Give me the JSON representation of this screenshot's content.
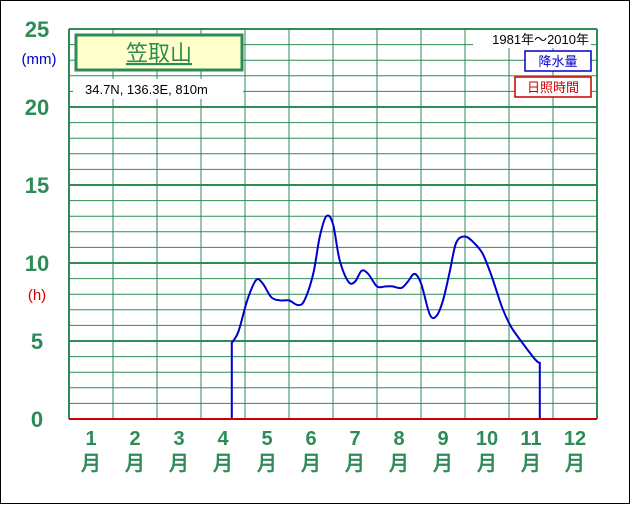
{
  "colors": {
    "grid": "#2e8b57",
    "axis_text": "#2e8b57",
    "precip": "#0000cc",
    "sunshine": "#cc0000",
    "station_fill": "#ffffcc",
    "station_border": "#2e8b57"
  },
  "header": {
    "station_name": "笠取山",
    "location": "34.7N,  136.3E,  810m",
    "period": "1981年〜2010年"
  },
  "legend": {
    "precip_label": "降水量",
    "sunshine_label": "日照時間"
  },
  "chart_data": {
    "type": "line",
    "title": "",
    "y_unit_precip": "(mm)",
    "y_unit_sunshine": "(h)",
    "ylim": [
      0,
      25
    ],
    "yticks": [
      "0",
      "5",
      "10",
      "15",
      "20",
      "25"
    ],
    "ytick_values": [
      0,
      5,
      10,
      15,
      20,
      25
    ],
    "xlim": [
      0.5,
      12.5
    ],
    "month_numbers": [
      "1",
      "2",
      "3",
      "4",
      "5",
      "6",
      "7",
      "8",
      "9",
      "10",
      "11",
      "12"
    ],
    "month_char": "月",
    "grid": true,
    "series": [
      {
        "name": "降水量",
        "color": "#0000cc",
        "x": [
          4.2,
          4.2,
          4.35,
          4.55,
          4.75,
          4.9,
          5.1,
          5.3,
          5.5,
          5.7,
          5.85,
          6.05,
          6.2,
          6.35,
          6.5,
          6.65,
          6.85,
          7.0,
          7.15,
          7.3,
          7.5,
          7.7,
          7.85,
          8.05,
          8.2,
          8.35,
          8.5,
          8.7,
          8.85,
          9.0,
          9.15,
          9.3,
          9.5,
          9.7,
          9.9,
          10.1,
          10.35,
          10.55,
          10.8,
          11.1,
          11.2,
          11.2
        ],
        "y": [
          0,
          4.9,
          5.6,
          7.6,
          8.9,
          8.7,
          7.8,
          7.6,
          7.6,
          7.3,
          7.6,
          9.3,
          11.7,
          13.0,
          12.5,
          10.2,
          8.8,
          8.8,
          9.5,
          9.3,
          8.5,
          8.5,
          8.5,
          8.4,
          8.8,
          9.3,
          8.7,
          6.7,
          6.6,
          7.6,
          9.4,
          11.3,
          11.7,
          11.3,
          10.6,
          9.2,
          7.1,
          5.9,
          4.9,
          3.8,
          3.6,
          0
        ]
      },
      {
        "name": "日照時間",
        "color": "#cc0000",
        "x": [
          0.5,
          12.5
        ],
        "y": [
          0,
          0
        ]
      }
    ]
  }
}
